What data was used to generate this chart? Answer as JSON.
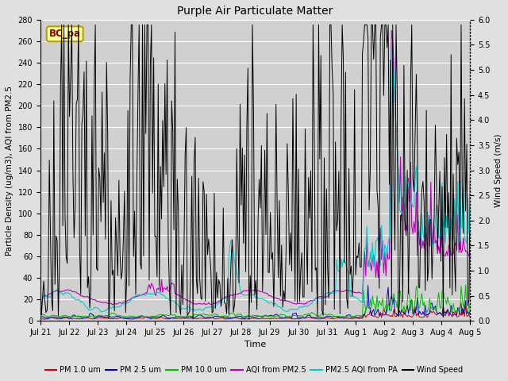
{
  "title": "Purple Air Particulate Matter",
  "xlabel": "Time",
  "ylabel_left": "Particle Density (ug/m3), AQI from PM2.5",
  "ylabel_right": "Wind Speed (m/s)",
  "ylim_left": [
    0,
    280
  ],
  "ylim_right": [
    0,
    6.0
  ],
  "annotation_text": "BC_pa",
  "annotation_box_color": "#ffff99",
  "annotation_box_edge": "#b8a000",
  "annotation_text_color": "#880000",
  "bg_color": "#e0e0e0",
  "plot_bg_color": "#d0d0d0",
  "grid_color": "#ffffff",
  "series_colors": {
    "pm1": "#cc0000",
    "pm25": "#0000bb",
    "pm10": "#00bb00",
    "aqi_pm25": "#bb00bb",
    "aqi_pa": "#00cccc",
    "wind": "#000000"
  },
  "legend_labels": [
    "PM 1.0 um",
    "PM 2.5 um",
    "PM 10.0 um",
    "AQI from PM2.5",
    "PM2.5 AQI from PA",
    "Wind Speed"
  ],
  "legend_colors": [
    "#cc0000",
    "#0000bb",
    "#00bb00",
    "#bb00bb",
    "#00cccc",
    "#000000"
  ],
  "xtick_labels": [
    "Jul 21",
    "Jul 22",
    "Jul 23",
    "Jul 24",
    "Jul 25",
    "Jul 26",
    "Jul 27",
    "Jul 28",
    "Jul 29",
    "Jul 30",
    "Jul 31",
    "Aug 1",
    "Aug 2",
    "Aug 3",
    "Aug 4",
    "Aug 5"
  ],
  "yticks_right": [
    0.0,
    0.5,
    1.0,
    1.5,
    2.0,
    2.5,
    3.0,
    3.5,
    4.0,
    4.5,
    5.0,
    5.5,
    6.0
  ],
  "yticks_left": [
    0,
    20,
    40,
    60,
    80,
    100,
    120,
    140,
    160,
    180,
    200,
    220,
    240,
    260,
    280
  ],
  "n_days": 16,
  "n_pts": 384
}
